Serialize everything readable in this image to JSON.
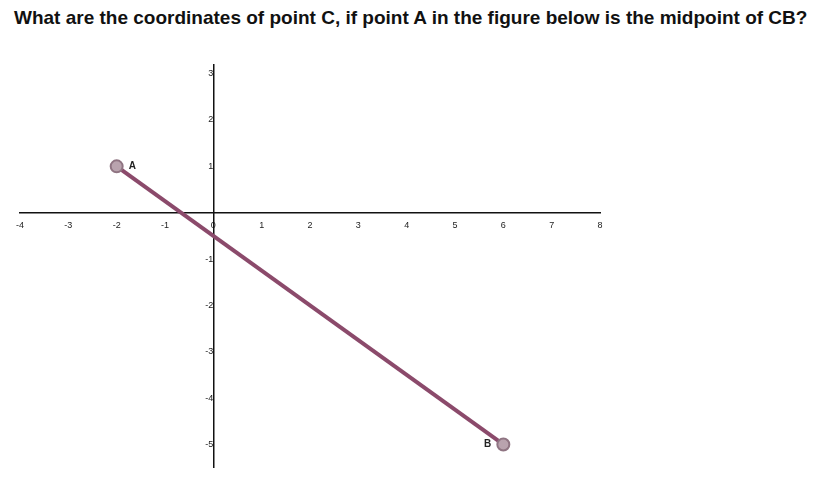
{
  "chart_data": {
    "type": "scatter",
    "title": "What are the coordinates of point C, if point A in the figure below is the midpoint of CB?",
    "x": [
      -2,
      6
    ],
    "values": [
      1,
      -5
    ],
    "point_labels": [
      "A",
      "B"
    ],
    "color": "#8b4a6b",
    "marker": "circle",
    "line_style": "solid",
    "xlim": [
      -4,
      8
    ],
    "xticks": [
      -4,
      -3,
      -2,
      -1,
      0,
      1,
      2,
      3,
      4,
      5,
      6,
      7,
      8
    ],
    "ylim": [
      -5.5,
      3.2
    ],
    "yticks": [
      -5,
      -4,
      -3,
      -2,
      -1,
      1,
      2,
      3
    ],
    "grid": false
  }
}
